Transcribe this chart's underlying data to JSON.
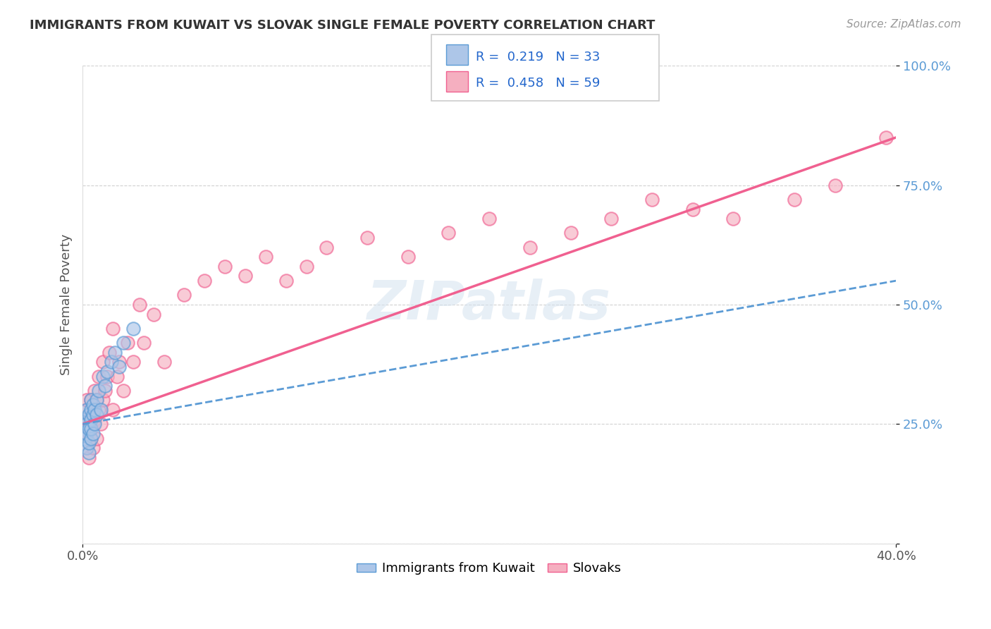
{
  "title": "IMMIGRANTS FROM KUWAIT VS SLOVAK SINGLE FEMALE POVERTY CORRELATION CHART",
  "source": "Source: ZipAtlas.com",
  "ylabel": "Single Female Poverty",
  "xlim": [
    0.0,
    0.4
  ],
  "ylim": [
    0.0,
    1.0
  ],
  "yticks": [
    0.0,
    0.25,
    0.5,
    0.75,
    1.0
  ],
  "ytick_labels": [
    "",
    "25.0%",
    "50.0%",
    "75.0%",
    "100.0%"
  ],
  "xtick_labels": [
    "0.0%",
    "40.0%"
  ],
  "xtick_positions": [
    0.0,
    0.4
  ],
  "r_kuwait": 0.219,
  "n_kuwait": 33,
  "r_slovak": 0.458,
  "n_slovak": 59,
  "color_kuwait": "#adc6e8",
  "color_slovak": "#f5afc0",
  "line_color_kuwait": "#5b9bd5",
  "line_color_slovak": "#f06090",
  "kuwait_x": [
    0.001,
    0.001,
    0.001,
    0.002,
    0.002,
    0.002,
    0.002,
    0.003,
    0.003,
    0.003,
    0.003,
    0.004,
    0.004,
    0.004,
    0.004,
    0.004,
    0.005,
    0.005,
    0.005,
    0.006,
    0.006,
    0.007,
    0.007,
    0.008,
    0.009,
    0.01,
    0.011,
    0.012,
    0.014,
    0.016,
    0.018,
    0.02,
    0.025
  ],
  "kuwait_y": [
    0.24,
    0.26,
    0.22,
    0.2,
    0.23,
    0.25,
    0.28,
    0.19,
    0.21,
    0.24,
    0.27,
    0.22,
    0.3,
    0.28,
    0.26,
    0.24,
    0.23,
    0.27,
    0.29,
    0.25,
    0.28,
    0.3,
    0.27,
    0.32,
    0.28,
    0.35,
    0.33,
    0.36,
    0.38,
    0.4,
    0.37,
    0.42,
    0.45
  ],
  "slovak_x": [
    0.001,
    0.001,
    0.001,
    0.002,
    0.002,
    0.002,
    0.003,
    0.003,
    0.003,
    0.004,
    0.004,
    0.004,
    0.005,
    0.005,
    0.005,
    0.006,
    0.006,
    0.007,
    0.007,
    0.008,
    0.008,
    0.009,
    0.01,
    0.01,
    0.011,
    0.012,
    0.013,
    0.015,
    0.015,
    0.017,
    0.018,
    0.02,
    0.022,
    0.025,
    0.028,
    0.03,
    0.035,
    0.04,
    0.05,
    0.06,
    0.07,
    0.08,
    0.09,
    0.1,
    0.11,
    0.12,
    0.14,
    0.16,
    0.18,
    0.2,
    0.22,
    0.24,
    0.26,
    0.28,
    0.3,
    0.32,
    0.35,
    0.37,
    0.395
  ],
  "slovak_y": [
    0.22,
    0.24,
    0.26,
    0.2,
    0.28,
    0.3,
    0.18,
    0.25,
    0.23,
    0.27,
    0.22,
    0.3,
    0.25,
    0.28,
    0.2,
    0.32,
    0.26,
    0.3,
    0.22,
    0.28,
    0.35,
    0.25,
    0.3,
    0.38,
    0.32,
    0.35,
    0.4,
    0.28,
    0.45,
    0.35,
    0.38,
    0.32,
    0.42,
    0.38,
    0.5,
    0.42,
    0.48,
    0.38,
    0.52,
    0.55,
    0.58,
    0.56,
    0.6,
    0.55,
    0.58,
    0.62,
    0.64,
    0.6,
    0.65,
    0.68,
    0.62,
    0.65,
    0.68,
    0.72,
    0.7,
    0.68,
    0.72,
    0.75,
    0.85
  ],
  "watermark": "ZIPatlas",
  "background_color": "#ffffff",
  "grid_color": "#cccccc",
  "title_fontsize": 13,
  "label_fontsize": 13
}
